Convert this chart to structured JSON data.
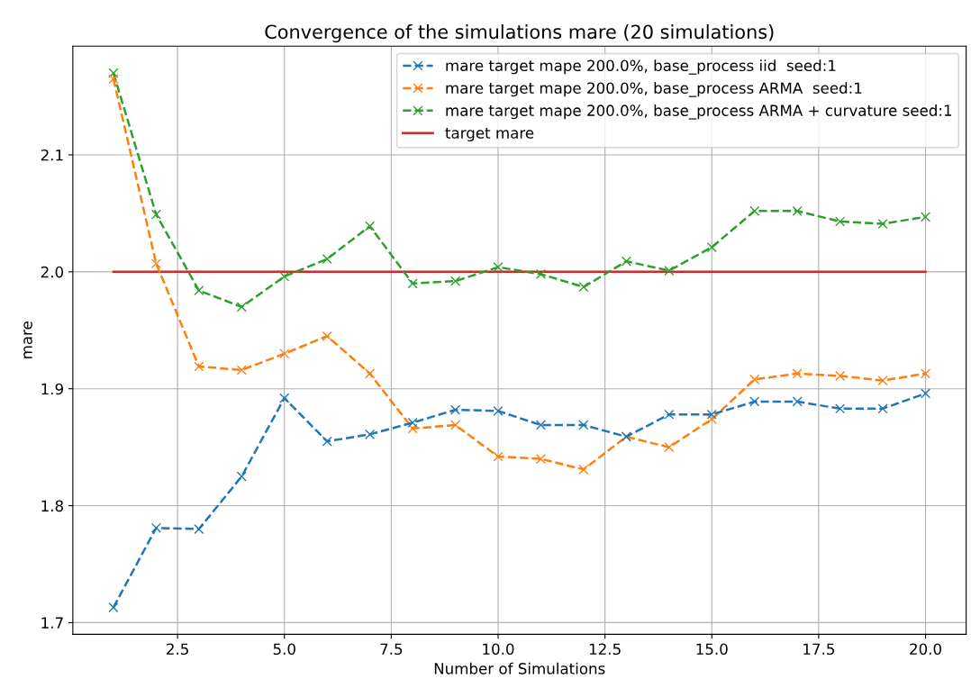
{
  "chart_data": {
    "type": "line",
    "title": "Convergence of the simulations mare (20 simulations)",
    "xlabel": "Number of Simulations",
    "ylabel": "mare",
    "x": [
      1,
      2,
      3,
      4,
      5,
      6,
      7,
      8,
      9,
      10,
      11,
      12,
      13,
      14,
      15,
      16,
      17,
      18,
      19,
      20
    ],
    "series": [
      {
        "name": "mare target mape 200.0%, base_process iid  seed:1",
        "color": "#1f77b4",
        "marker": "cross",
        "line_style": "dashed",
        "values": [
          1.713,
          1.781,
          1.78,
          1.825,
          1.892,
          1.855,
          1.861,
          1.871,
          1.882,
          1.881,
          1.869,
          1.869,
          1.859,
          1.878,
          1.878,
          1.889,
          1.889,
          1.883,
          1.883,
          1.896
        ]
      },
      {
        "name": "mare target mape 200.0%, base_process ARMA  seed:1",
        "color": "#ff7f0e",
        "marker": "cross",
        "line_style": "dashed",
        "values": [
          2.165,
          2.007,
          1.919,
          1.916,
          1.93,
          1.945,
          1.913,
          1.866,
          1.869,
          1.842,
          1.84,
          1.831,
          1.859,
          1.85,
          1.874,
          1.908,
          1.913,
          1.911,
          1.907,
          1.913
        ]
      },
      {
        "name": "mare target mape 200.0%, base_process ARMA + curvature seed:1",
        "color": "#2ca02c",
        "marker": "cross",
        "line_style": "dashed",
        "values": [
          2.17,
          2.049,
          1.984,
          1.97,
          1.996,
          2.011,
          2.039,
          1.99,
          1.992,
          2.004,
          1.998,
          1.987,
          2.009,
          2.001,
          2.021,
          2.052,
          2.052,
          2.043,
          2.041,
          2.047
        ]
      },
      {
        "name": "target mare",
        "color": "#d62728",
        "marker": "none",
        "line_style": "solid",
        "x": [
          1,
          20
        ],
        "values": [
          2.0,
          2.0
        ]
      }
    ],
    "xlim": [
      0.05,
      20.95
    ],
    "xticks": [
      {
        "value": 2.5,
        "label": "2.5"
      },
      {
        "value": 5,
        "label": "5.0"
      },
      {
        "value": 7.5,
        "label": "7.5"
      },
      {
        "value": 10,
        "label": "10.0"
      },
      {
        "value": 12.5,
        "label": "12.5"
      },
      {
        "value": 15,
        "label": "15.0"
      },
      {
        "value": 17.5,
        "label": "17.5"
      },
      {
        "value": 20,
        "label": "20.0"
      }
    ],
    "ylim": [
      1.69,
      2.193
    ],
    "yticks": [
      1.7,
      1.8,
      1.9,
      {
        "value": 2,
        "label": "2.0"
      },
      2.1
    ],
    "grid": true,
    "legend": "top right"
  }
}
